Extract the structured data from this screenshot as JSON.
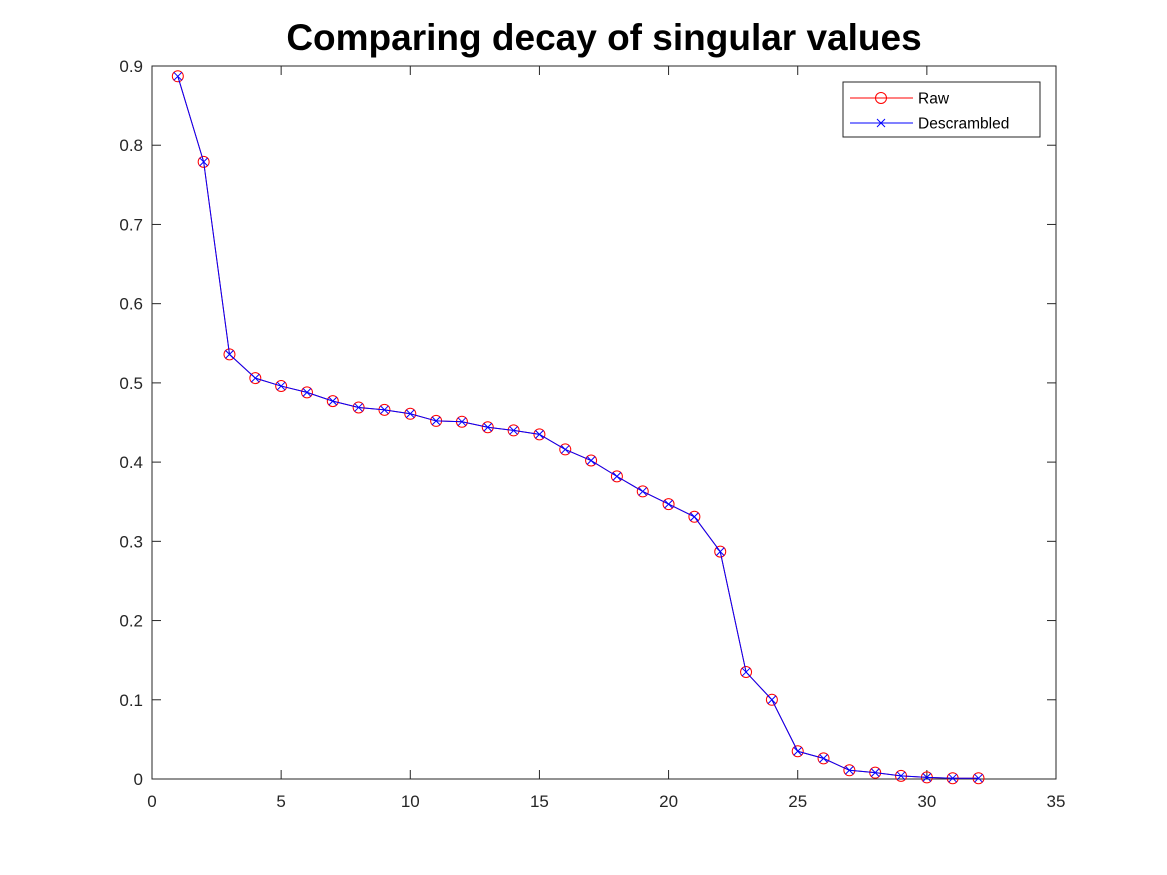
{
  "chart_data": {
    "type": "line",
    "title": "Comparing decay of singular values",
    "xlabel": "",
    "ylabel": "",
    "xlim": [
      0,
      35
    ],
    "ylim": [
      0,
      0.9
    ],
    "xticks": [
      "0",
      "5",
      "10",
      "15",
      "20",
      "25",
      "30",
      "35"
    ],
    "yticks": [
      "0",
      "0.1",
      "0.2",
      "0.3",
      "0.4",
      "0.5",
      "0.6",
      "0.7",
      "0.8",
      "0.9"
    ],
    "grid": false,
    "legend_position": "top-right",
    "x": [
      1,
      2,
      3,
      4,
      5,
      6,
      7,
      8,
      9,
      10,
      11,
      12,
      13,
      14,
      15,
      16,
      17,
      18,
      19,
      20,
      21,
      22,
      23,
      24,
      25,
      26,
      27,
      28,
      29,
      30,
      31,
      32
    ],
    "series": [
      {
        "name": "Raw",
        "color": "#ff0000",
        "marker": "circle",
        "values": [
          0.887,
          0.779,
          0.536,
          0.506,
          0.496,
          0.488,
          0.477,
          0.469,
          0.466,
          0.461,
          0.452,
          0.451,
          0.444,
          0.44,
          0.435,
          0.416,
          0.402,
          0.382,
          0.363,
          0.347,
          0.331,
          0.287,
          0.135,
          0.1,
          0.035,
          0.026,
          0.011,
          0.008,
          0.004,
          0.002,
          0.001,
          0.001
        ]
      },
      {
        "name": "Descrambled",
        "color": "#0000ff",
        "marker": "x",
        "values": [
          0.887,
          0.779,
          0.536,
          0.506,
          0.496,
          0.488,
          0.477,
          0.469,
          0.466,
          0.461,
          0.452,
          0.451,
          0.444,
          0.44,
          0.435,
          0.416,
          0.402,
          0.382,
          0.363,
          0.347,
          0.331,
          0.287,
          0.135,
          0.1,
          0.035,
          0.026,
          0.011,
          0.008,
          0.004,
          0.002,
          0.001,
          0.001
        ]
      }
    ]
  }
}
